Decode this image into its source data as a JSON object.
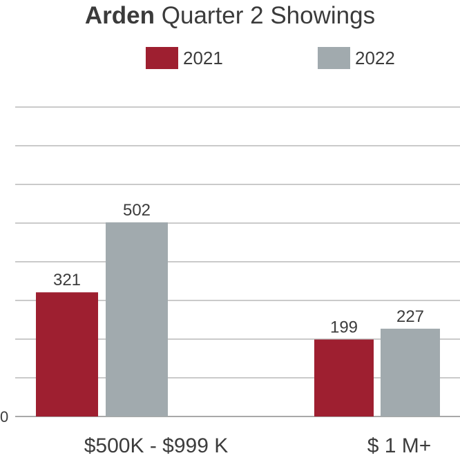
{
  "colors": {
    "2021": "#9e1f30",
    "2022": "#a1aaae",
    "grid": "#b8b8b8",
    "text": "#3c3c3c"
  },
  "chart_data": {
    "type": "bar",
    "title_bold": "Arden",
    "title_rest": " Quarter 2 Showings",
    "categories": [
      "$500K - $999 K",
      "$ 1 M+"
    ],
    "series": [
      {
        "name": "2021",
        "values": [
          321,
          199
        ]
      },
      {
        "name": "2022",
        "values": [
          502,
          227
        ]
      }
    ],
    "y_tick_labels": [
      "0"
    ],
    "ylim": [
      0,
      800
    ],
    "grid": true,
    "legend_position": "top-center",
    "data_labels": true
  }
}
